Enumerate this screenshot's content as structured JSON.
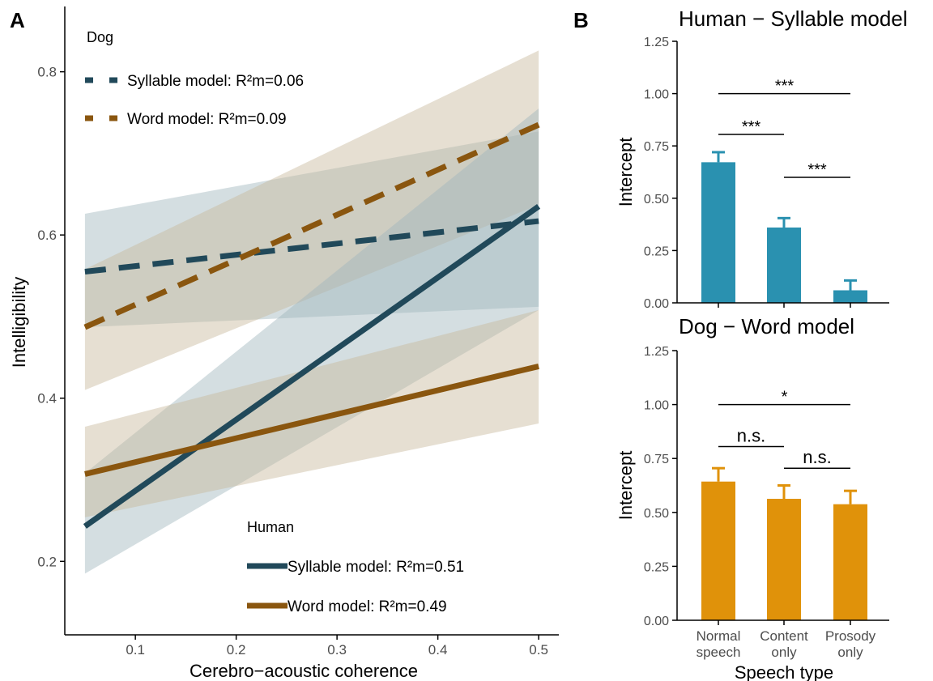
{
  "panel_labels": {
    "a": "A",
    "b": "B"
  },
  "colors": {
    "syllable": "#21495a",
    "word": "#8a560f",
    "band_syllable": "#9fb6bd",
    "band_word": "#c8b89c",
    "bar_top": "#2a91b0",
    "bar_bottom": "#e0920a",
    "axis": "#000000",
    "tick_text": "#4d4d4d"
  },
  "chart_data": [
    {
      "id": "A",
      "type": "line",
      "xlabel": "Cerebro−acoustic coherence",
      "ylabel": "Intelligibility",
      "xlim": [
        0.03,
        0.52
      ],
      "ylim": [
        0.11,
        0.88
      ],
      "xticks": [
        0.1,
        0.2,
        0.3,
        0.4,
        0.5
      ],
      "xtick_labels": [
        "0.1",
        "0.2",
        "0.3",
        "0.4",
        "0.5"
      ],
      "yticks": [
        0.2,
        0.4,
        0.6,
        0.8
      ],
      "ytick_labels": [
        "0.2",
        "0.4",
        "0.6",
        "0.8"
      ],
      "grid": false,
      "legend_groups": [
        {
          "title": "Dog",
          "placement": "top-left",
          "entries": [
            {
              "label": "Syllable model: R²m=0.06",
              "color_key": "syllable",
              "dash": true
            },
            {
              "label": "Word model: R²m=0.09",
              "color_key": "word",
              "dash": true
            }
          ]
        },
        {
          "title": "Human",
          "placement": "bottom-center",
          "entries": [
            {
              "label": "Syllable model: R²m=0.51",
              "color_key": "syllable",
              "dash": false
            },
            {
              "label": "Word model: R²m=0.49",
              "color_key": "word",
              "dash": false
            }
          ]
        }
      ],
      "series": [
        {
          "group": "Dog",
          "model": "Syllable",
          "dash": true,
          "color_key": "syllable",
          "band_key": "band_syllable",
          "x": [
            0.05,
            0.5
          ],
          "y": [
            0.555,
            0.617
          ],
          "ci_lower": [
            0.487,
            0.512
          ],
          "ci_upper": [
            0.626,
            0.727
          ]
        },
        {
          "group": "Dog",
          "model": "Word",
          "dash": true,
          "color_key": "word",
          "band_key": "band_word",
          "x": [
            0.05,
            0.5
          ],
          "y": [
            0.487,
            0.735
          ],
          "ci_lower": [
            0.41,
            0.637
          ],
          "ci_upper": [
            0.558,
            0.826
          ]
        },
        {
          "group": "Human",
          "model": "Syllable",
          "dash": false,
          "color_key": "syllable",
          "band_key": "band_syllable",
          "x": [
            0.05,
            0.5
          ],
          "y": [
            0.243,
            0.635
          ],
          "ci_lower": [
            0.185,
            0.508
          ],
          "ci_upper": [
            0.308,
            0.755
          ]
        },
        {
          "group": "Human",
          "model": "Word",
          "dash": false,
          "color_key": "word",
          "band_key": "band_word",
          "x": [
            0.05,
            0.5
          ],
          "y": [
            0.307,
            0.439
          ],
          "ci_lower": [
            0.254,
            0.369
          ],
          "ci_upper": [
            0.365,
            0.508
          ]
        }
      ]
    },
    {
      "id": "B-top",
      "type": "bar",
      "title": "Human − Syllable model",
      "ylabel": "Intercept",
      "categories": [
        "Normal speech",
        "Content only",
        "Prosody only"
      ],
      "values": [
        0.672,
        0.36,
        0.06
      ],
      "error_upper": [
        0.72,
        0.405,
        0.107
      ],
      "ylim": [
        0,
        1.25
      ],
      "yticks": [
        0,
        0.25,
        0.5,
        0.75,
        1.0,
        1.25
      ],
      "ytick_labels": [
        "0.00",
        "0.25",
        "0.50",
        "0.75",
        "1.00",
        "1.25"
      ],
      "color_key": "bar_top",
      "significance": [
        {
          "from": 0,
          "to": 2,
          "y": 1.0,
          "label": "***"
        },
        {
          "from": 0,
          "to": 1,
          "y": 0.805,
          "label": "***"
        },
        {
          "from": 1,
          "to": 2,
          "y": 0.6,
          "label": "***"
        }
      ]
    },
    {
      "id": "B-bottom",
      "type": "bar",
      "title": "Dog − Word model",
      "ylabel": "Intercept",
      "xlabel": "Speech type",
      "categories": [
        "Normal speech",
        "Content only",
        "Prosody only"
      ],
      "category_label_lines": [
        [
          "Normal",
          "speech"
        ],
        [
          "Content",
          "only"
        ],
        [
          "Prosody",
          "only"
        ]
      ],
      "values": [
        0.643,
        0.563,
        0.538
      ],
      "error_upper": [
        0.705,
        0.625,
        0.6
      ],
      "ylim": [
        0,
        1.25
      ],
      "yticks": [
        0,
        0.25,
        0.5,
        0.75,
        1.0,
        1.25
      ],
      "ytick_labels": [
        "0.00",
        "0.25",
        "0.50",
        "0.75",
        "1.00",
        "1.25"
      ],
      "color_key": "bar_bottom",
      "significance": [
        {
          "from": 0,
          "to": 2,
          "y": 1.0,
          "label": "*"
        },
        {
          "from": 0,
          "to": 1,
          "y": 0.805,
          "label": "n.s."
        },
        {
          "from": 1,
          "to": 2,
          "y": 0.705,
          "label": "n.s."
        }
      ]
    }
  ]
}
